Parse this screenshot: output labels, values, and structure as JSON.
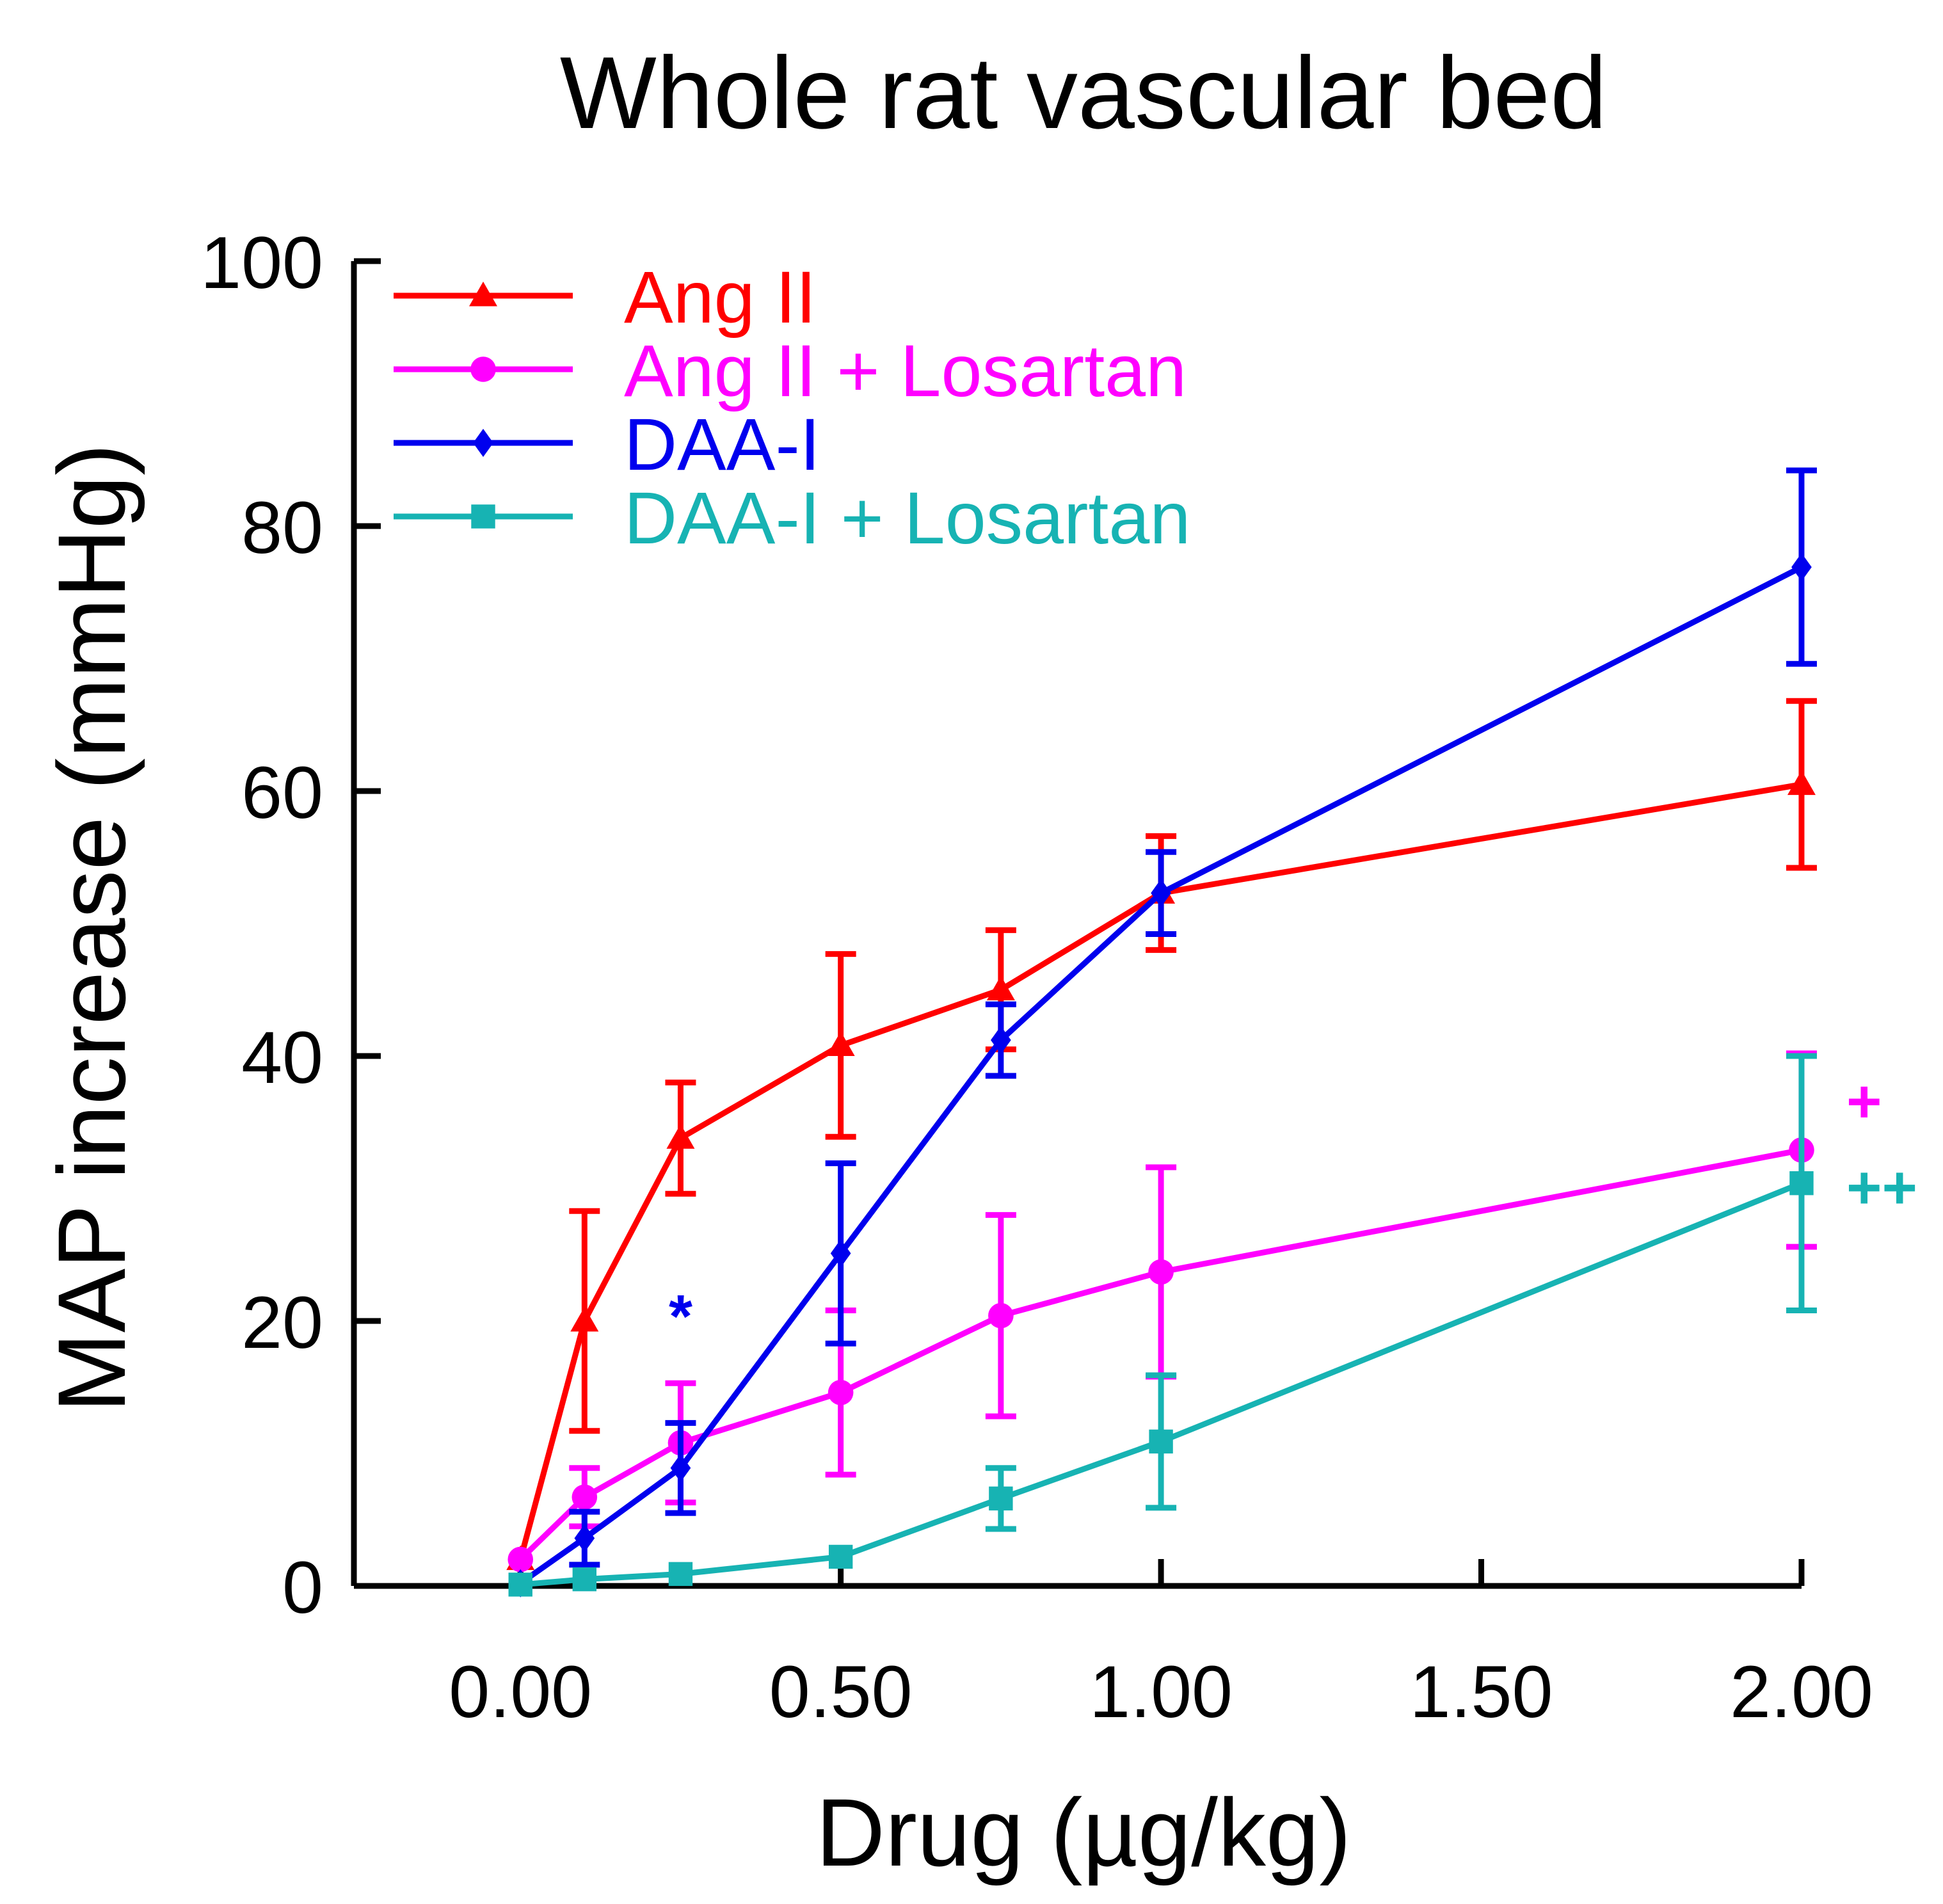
{
  "chart_data": {
    "type": "line",
    "title": "Whole rat vascular bed",
    "xlabel": "Drug (µg/kg)",
    "ylabel": "MAP increase (mmHg)",
    "xlim": [
      -0.26,
      2.05
    ],
    "ylim": [
      0,
      100
    ],
    "xticks": [
      0,
      0.5,
      1,
      1.5,
      2
    ],
    "xtick_labels": [
      "0.00",
      "0.50",
      "1.00",
      "1.50",
      "2.00"
    ],
    "yticks": [
      0,
      20,
      40,
      60,
      80,
      100
    ],
    "ytick_labels": [
      "0",
      "20",
      "40",
      "60",
      "80",
      "100"
    ],
    "grid": false,
    "legend_position": "top-left",
    "series": [
      {
        "name": "Ang II",
        "color": "#ff0000",
        "marker": "triangle",
        "x": [
          0,
          0.1,
          0.25,
          0.5,
          0.75,
          1.0,
          2.0
        ],
        "y": [
          2.0,
          20.0,
          33.8,
          40.8,
          45.0,
          52.3,
          60.5
        ],
        "err": [
          0.4,
          8.3,
          4.2,
          6.9,
          4.5,
          4.3,
          6.3
        ]
      },
      {
        "name": "Ang II + Losartan",
        "color": "#ff00ff",
        "marker": "circle",
        "x": [
          0,
          0.1,
          0.25,
          0.5,
          0.75,
          1.0,
          2.0
        ],
        "y": [
          2.0,
          6.7,
          10.8,
          14.6,
          20.4,
          23.7,
          32.9
        ],
        "err": [
          0.3,
          2.2,
          4.5,
          6.2,
          7.6,
          7.9,
          7.3
        ]
      },
      {
        "name": "DAA-I",
        "color": "#0000ee",
        "marker": "diamond",
        "x": [
          0,
          0.1,
          0.25,
          0.5,
          0.75,
          1.0,
          2.0
        ],
        "y": [
          0.2,
          3.6,
          8.9,
          25.1,
          41.2,
          52.3,
          76.9
        ],
        "err": [
          0.2,
          2.0,
          3.4,
          6.8,
          2.7,
          3.1,
          7.3
        ]
      },
      {
        "name": "DAA-I + Losartan",
        "color": "#17b3b3",
        "marker": "square",
        "x": [
          0,
          0.1,
          0.25,
          0.5,
          0.75,
          1.0,
          2.0
        ],
        "y": [
          0.1,
          0.5,
          0.9,
          2.2,
          6.6,
          10.9,
          30.4
        ],
        "err": [
          0.1,
          0.2,
          0.2,
          0.4,
          2.3,
          5.0,
          9.6
        ]
      }
    ],
    "annotations": [
      {
        "text": "*",
        "x": 0.25,
        "y": 18.8,
        "color": "#0000ee"
      },
      {
        "text": "+",
        "x": 2.07,
        "y": 35.0,
        "color": "#ff00ff"
      },
      {
        "text": "++",
        "x": 2.07,
        "y": 28.5,
        "color": "#17b3b3"
      }
    ]
  }
}
